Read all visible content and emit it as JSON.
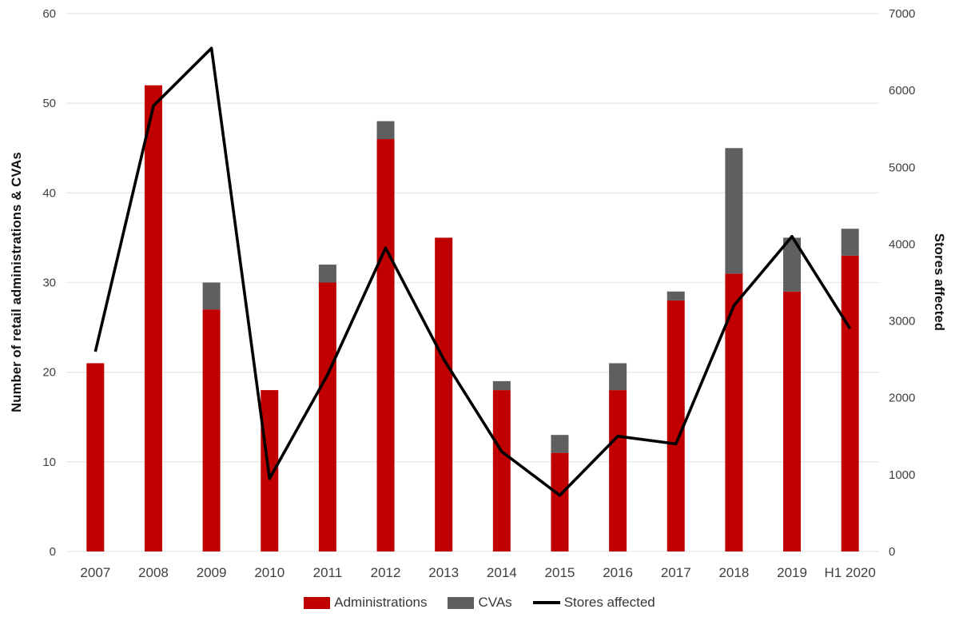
{
  "chart_data": {
    "type": "bar",
    "subtype": "stacked-bars-with-line-overlay",
    "title": "",
    "categories": [
      "2007",
      "2008",
      "2009",
      "2010",
      "2011",
      "2012",
      "2013",
      "2014",
      "2015",
      "2016",
      "2017",
      "2018",
      "2019",
      "H1 2020"
    ],
    "series": [
      {
        "name": "Administrations",
        "type": "bar",
        "axis": "left",
        "color": "#c00000",
        "values": [
          21,
          52,
          27,
          18,
          30,
          46,
          35,
          18,
          11,
          18,
          28,
          31,
          29,
          33
        ]
      },
      {
        "name": "CVAs",
        "type": "bar",
        "axis": "left",
        "color": "#5f5f5f",
        "values": [
          0,
          0,
          3,
          0,
          2,
          2,
          0,
          1,
          2,
          3,
          1,
          14,
          6,
          3
        ]
      },
      {
        "name": "Stores affected",
        "type": "line",
        "axis": "right",
        "color": "#000000",
        "values": [
          2600,
          5800,
          6550,
          950,
          2300,
          3950,
          2500,
          1300,
          730,
          1500,
          1400,
          3200,
          4100,
          2900
        ]
      }
    ],
    "left_axis": {
      "label": "Number of retail administrations & CVAs",
      "min": 0,
      "max": 60,
      "step": 10,
      "ticks": [
        "0",
        "10",
        "20",
        "30",
        "40",
        "50",
        "60"
      ]
    },
    "right_axis": {
      "label": "Stores affected",
      "min": 0,
      "max": 7000,
      "step": 1000,
      "ticks": [
        "0",
        "1000",
        "2000",
        "3000",
        "4000",
        "5000",
        "6000",
        "7000"
      ]
    },
    "grid": true,
    "legend_position": "bottom"
  },
  "colors": {
    "background": "#ffffff",
    "gridline": "#e7e7e7",
    "tick_text": "#3f3f3f",
    "administrations_bar": "#c00000",
    "cvas_bar": "#5f5f5f",
    "stores_line": "#000000"
  }
}
